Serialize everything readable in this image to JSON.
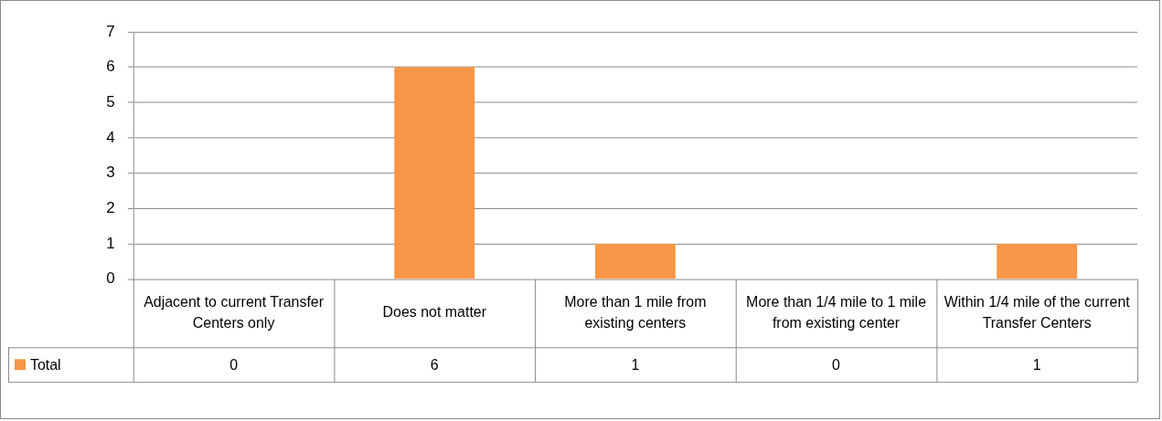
{
  "chart_data": {
    "type": "bar",
    "categories": [
      "Adjacent to current Transfer Centers only",
      "Does not matter",
      "More than 1 mile from existing centers",
      "More than 1/4 mile to 1 mile from existing center",
      "Within 1/4 mile of the current Transfer Centers"
    ],
    "series": [
      {
        "name": "Total",
        "color": "#f79646",
        "values": [
          0,
          6,
          1,
          0,
          1
        ]
      }
    ],
    "ylim": [
      0,
      7
    ],
    "yticks": [
      0,
      1,
      2,
      3,
      4,
      5,
      6,
      7
    ],
    "grid": "y",
    "legend": "bottom left",
    "data_labels": true
  }
}
